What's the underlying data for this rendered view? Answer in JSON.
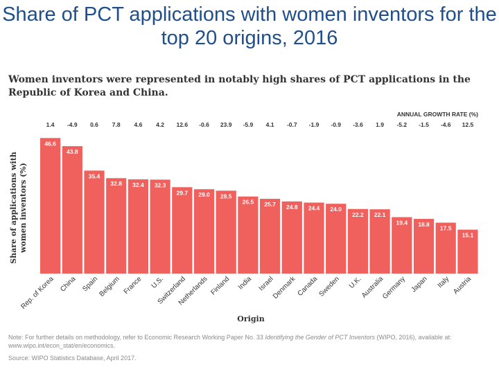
{
  "slide_title": "Share of PCT applications with women inventors for the top 20 origins, 2016",
  "chart_data": {
    "type": "bar",
    "title": "Women inventors were represented in notably high shares of PCT applications in the Republic of Korea and China.",
    "xlabel": "Origin",
    "ylabel": "Share of applications with women inventors (%)",
    "ylim": [
      0,
      50
    ],
    "grid": false,
    "growth_header": "ANNUAL GROWTH RATE (%)",
    "categories": [
      "Rep. of Korea",
      "China",
      "Spain",
      "Belgium",
      "France",
      "U.S.",
      "Switzerland",
      "Netherlands",
      "Finland",
      "India",
      "Israel",
      "Denmark",
      "Canada",
      "Sweden",
      "U.K.",
      "Australia",
      "Germany",
      "Japan",
      "Italy",
      "Austria"
    ],
    "values": [
      46.6,
      43.8,
      35.4,
      32.8,
      32.4,
      32.3,
      29.7,
      29.0,
      28.5,
      26.5,
      25.7,
      24.8,
      24.4,
      24.0,
      22.2,
      22.1,
      19.4,
      18.8,
      17.5,
      15.1
    ],
    "value_labels": [
      "46.6",
      "43.8",
      "35.4",
      "32.8",
      "32.4",
      "32.3",
      "29.7",
      "29.0",
      "28.5",
      "26.5",
      "25.7",
      "24.8",
      "24.4",
      "24.0",
      "22.2",
      "22.1",
      "19.4",
      "18.8",
      "17.5",
      "15.1"
    ],
    "growth_rates": [
      "1.4",
      "-4.9",
      "0.6",
      "7.8",
      "4.6",
      "4.2",
      "12.6",
      "-0.6",
      "23.9",
      "-5.9",
      "4.1",
      "-0.7",
      "-1.9",
      "-0.9",
      "-3.6",
      "1.9",
      "-5.2",
      "-1.5",
      "-4.6",
      "12.5"
    ],
    "bar_color": "#f0605d",
    "label_color": "#ffffff",
    "text_color": "#333333"
  },
  "note": {
    "prefix": "Note: For further details on methodology, refer to Economic Research Working Paper No. 33 ",
    "italic": "Identifying the Gender of PCT Inventors",
    "suffix": " (WIPO, 2016), available at: www.wipo.int/econ_stat/en/economics."
  },
  "source": "Source: WIPO Statistics Database, April 2017."
}
